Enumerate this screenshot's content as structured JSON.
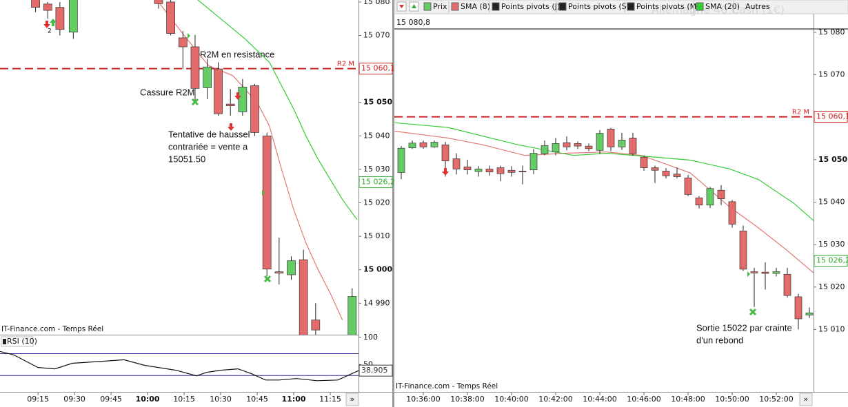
{
  "toolbar": {
    "items": [
      "Prix",
      "SMA (8)",
      "Points pivots (J)",
      "Points pivots (S)",
      "Points pivots (M)",
      "SMA (20)",
      "Autres"
    ]
  },
  "watermark": "Allemagne 40 Cash (1€)",
  "nav_button": "»",
  "annotations_left": [
    "R2M en resistance",
    "Cassure R2M",
    "Tentative de haussel",
    "contrariée = vente a",
    "15051.50",
    "2"
  ],
  "annotations_right": [
    "Sortie 15022 par crainte",
    "d'un rebond"
  ],
  "chart_data": [
    {
      "type": "candlestick",
      "source": "IT-Finance.com - Temps Réel",
      "up_color": "#66cc66",
      "down_color": "#e36b6b",
      "x": [
        554,
        559,
        564,
        569.5,
        604.5,
        609.5,
        614.5,
        619.5,
        624.5,
        629,
        634,
        639,
        644,
        649,
        654,
        659,
        664,
        669,
        684
      ],
      "open": [
        15082,
        15079.4,
        15078.4,
        15071,
        15081,
        15080,
        15069.3,
        15066.6,
        15054.4,
        15060,
        15049.5,
        15047.2,
        15055,
        15040,
        14999.4,
        14998.5,
        15003,
        14985,
        14980
      ],
      "high": [
        15083,
        15080,
        15080,
        15082,
        15082,
        15081,
        15071.3,
        15070.2,
        15063,
        15062,
        15054,
        15057,
        15055.5,
        15041,
        15009.6,
        15004,
        15006,
        14990,
        14994.5
      ],
      "low": [
        15077,
        15075,
        15070,
        15069,
        15078,
        15070,
        15060,
        15050,
        15051,
        15046,
        15046,
        15046,
        15040,
        14998,
        14995.6,
        14997,
        14975,
        14978,
        14979
      ],
      "close": [
        15078.4,
        15077.5,
        15071.8,
        15081,
        15079.5,
        15070.6,
        15066.6,
        15054.2,
        15060.6,
        15046.6,
        15049,
        15054.6,
        15041,
        15000.2,
        14999,
        15002.7,
        14978,
        14982,
        14992
      ],
      "series": [
        {
          "color": "#e07a74",
          "x": [
            605,
            615,
            625,
            635,
            645,
            650,
            655,
            660,
            665,
            670,
            675,
            680
          ],
          "values": [
            15079.5,
            15070,
            15061,
            15058,
            15050,
            15043,
            15030,
            15018,
            15008,
            15000,
            14993,
            14985
          ]
        },
        {
          "color": "#33cc33",
          "x": [
            620,
            630,
            640,
            650,
            655,
            660,
            665,
            670,
            675,
            680,
            686
          ],
          "values": [
            15081,
            15075,
            15069,
            15062,
            15055,
            15048,
            15040,
            15033,
            15027,
            15021,
            15015
          ]
        }
      ],
      "xlim": [
        539.4,
        686.6
      ],
      "xticks": [
        {
          "value": 555,
          "label": "09:15"
        },
        {
          "value": 570,
          "label": "09:30"
        },
        {
          "value": 585,
          "label": "09:45"
        },
        {
          "value": 600,
          "label": "10:00"
        },
        {
          "value": 615,
          "label": "10:15"
        },
        {
          "value": 630,
          "label": "10:30"
        },
        {
          "value": 645,
          "label": "10:45"
        },
        {
          "value": 660,
          "label": "11:00"
        },
        {
          "value": 675,
          "label": "11:15"
        }
      ],
      "ylim": [
        14980.6,
        15080.6
      ],
      "yticks": [
        {
          "value": 15080,
          "label": "15 080"
        },
        {
          "value": 15070,
          "label": "15 070"
        },
        {
          "value": 15050,
          "label": "15 050"
        },
        {
          "value": 15040,
          "label": "15 040"
        },
        {
          "value": 15030,
          "label": "15 030"
        },
        {
          "value": 15020,
          "label": "15 020"
        },
        {
          "value": 15010,
          "label": "15 010"
        },
        {
          "value": 15000,
          "label": "15 000"
        },
        {
          "value": 14990,
          "label": "14 990"
        }
      ],
      "levels": [
        {
          "value": 15060.1,
          "label": "R2 M",
          "color": "#cc2222"
        }
      ],
      "price_labels": [
        {
          "value": 15060.1,
          "label": "15 060,1",
          "color": "#cc2222"
        },
        {
          "value": 15026.2,
          "label": "15 026,2",
          "color": "#33aa33"
        }
      ]
    },
    {
      "type": "line",
      "title": "RSI (10)",
      "color": "#111111",
      "x": [
        539.4,
        545.1,
        555,
        562,
        569.1,
        581.9,
        590.3,
        598.8,
        611.6,
        620.1,
        624.3,
        630,
        637.1,
        642.7,
        648.4,
        654,
        661.1,
        669.6,
        678.1,
        683.8,
        686.6
      ],
      "values": [
        74.1,
        67.7,
        44.7,
        42.2,
        52.4,
        56.2,
        58.8,
        48.6,
        39.6,
        29.4,
        35.8,
        39.6,
        42.2,
        33.2,
        21.7,
        21.7,
        24.3,
        20.4,
        21.7,
        33.2,
        38.9
      ],
      "xlim": [
        539.4,
        686.6
      ],
      "ylim": [
        0,
        103.5
      ],
      "yticks": [
        100,
        50
      ],
      "levels": [
        {
          "value": 70,
          "color": "#333399"
        },
        {
          "value": 30,
          "color": "#333399"
        }
      ],
      "price_labels": [
        {
          "value": 38.905,
          "label": "38,905",
          "color": "#333333"
        }
      ]
    },
    {
      "type": "candlestick",
      "source": "IT-Finance.com - Temps Réel",
      "up_color": "#66cc66",
      "down_color": "#e36b6b",
      "x": [
        635,
        635.5,
        636,
        636.5,
        637,
        637.5,
        638,
        638.5,
        639,
        639.5,
        640,
        640.5,
        641,
        641.5,
        642,
        642.5,
        643,
        643.5,
        644,
        644.5,
        645,
        645.5,
        646,
        646.5,
        647,
        647.5,
        648,
        648.5,
        649,
        649.5,
        650,
        650.5,
        651,
        651.5,
        652,
        652.5,
        653,
        653.5
      ],
      "open": [
        15047,
        15052.8,
        15054,
        15053,
        15053.5,
        15050.2,
        15048.3,
        15047.2,
        15047.8,
        15048.1,
        15047.5,
        15047.3,
        15047.6,
        15051.4,
        15051.8,
        15054,
        15053.8,
        15053.2,
        15052.2,
        15057.2,
        15053,
        15055.1,
        15050.6,
        15048.1,
        15047.3,
        15046.6,
        15045.7,
        15041,
        15039.3,
        15042.8,
        15040.1,
        15033.2,
        15023.6,
        15023.5,
        15023.2,
        15023,
        15017.7,
        15013.4
      ],
      "high": [
        15053.2,
        15054.5,
        15054.5,
        15054.5,
        15054.2,
        15051.5,
        15050,
        15048.5,
        15048.6,
        15048.6,
        15048.5,
        15048.6,
        15052.5,
        15054.5,
        15055.1,
        15055.5,
        15054.3,
        15053.8,
        15057,
        15057.5,
        15056.3,
        15056.3,
        15051,
        15048.6,
        15048,
        15048.2,
        15046.4,
        15041.4,
        15043.6,
        15044,
        15040.5,
        15034.5,
        15024.5,
        15025.8,
        15024.5,
        15024.5,
        15018.4,
        15015.2
      ],
      "low": [
        15045.4,
        15052.5,
        15052.6,
        15052.8,
        15046,
        15046.5,
        15046.5,
        15046,
        15046.2,
        15044.9,
        15046,
        15044.2,
        15046.6,
        15051,
        15051,
        15052.2,
        15052.5,
        15052,
        15051.3,
        15052,
        15052.3,
        15050.9,
        15047.4,
        15044.5,
        15045.6,
        15045.6,
        15041.4,
        15038.5,
        15038.6,
        15039.3,
        15034,
        15023.8,
        15015.3,
        15019.4,
        15022.5,
        15017.5,
        15010,
        15012.7
      ],
      "close": [
        15052.7,
        15053.9,
        15053,
        15054.1,
        15049.7,
        15047.8,
        15047.6,
        15047.8,
        15047.1,
        15046.7,
        15047,
        15047.1,
        15051.5,
        15053.3,
        15053.8,
        15053,
        15053.2,
        15052.6,
        15056.2,
        15053,
        15054.6,
        15051.4,
        15048.1,
        15047.5,
        15046.2,
        15046,
        15041.8,
        15039.3,
        15043.2,
        15040.8,
        15034.8,
        15024.2,
        15023.3,
        15023.2,
        15023.6,
        15018,
        15012.5,
        15013.9
      ],
      "series": [
        {
          "color": "#e07a74",
          "x": [
            634.7,
            637.1,
            638.7,
            640.6,
            642.4,
            644.3,
            645.9,
            648.1,
            649.9,
            651.2,
            652.4,
            653.7
          ],
          "values": [
            15056.7,
            15055.1,
            15053.5,
            15051,
            15051.5,
            15051.8,
            15051,
            15046.9,
            15038.8,
            15033.9,
            15029,
            15023.3
          ]
        },
        {
          "color": "#33cc33",
          "x": [
            634.7,
            637.1,
            640.3,
            642.8,
            644.3,
            646.5,
            648.1,
            649.9,
            651.2,
            652.8,
            653.7
          ],
          "values": [
            15058.7,
            15057.6,
            15053.5,
            15051,
            15051.5,
            15050.6,
            15049.9,
            15047.8,
            15045.3,
            15039.7,
            15035.6
          ]
        }
      ],
      "xlim": [
        634.6875,
        653.6875
      ],
      "xticks": [
        {
          "value": 636,
          "label": "10:36:00"
        },
        {
          "value": 638,
          "label": "10:38:00"
        },
        {
          "value": 640,
          "label": "10:40:00"
        },
        {
          "value": 642,
          "label": "10:42:00"
        },
        {
          "value": 644,
          "label": "10:44:00"
        },
        {
          "value": 646,
          "label": "10:46:00"
        },
        {
          "value": 648,
          "label": "10:48:00"
        },
        {
          "value": 650,
          "label": "10:50:00"
        },
        {
          "value": 652,
          "label": "10:52:00"
        }
      ],
      "ylim": [
        14995.3,
        15080.8
      ],
      "yticks": [
        {
          "value": 15080,
          "label": "15 080"
        },
        {
          "value": 15070,
          "label": "15 070"
        },
        {
          "value": 15050,
          "label": "15 050"
        },
        {
          "value": 15040,
          "label": "15 040"
        },
        {
          "value": 15030,
          "label": "15 030"
        },
        {
          "value": 15020,
          "label": "15 020"
        },
        {
          "value": 15010,
          "label": "15 010"
        }
      ],
      "levels": [
        {
          "value": 15060.1,
          "label": "R2 M",
          "color": "#cc2222"
        }
      ],
      "top_label": {
        "value": 15080.8,
        "label": "15 080,8"
      },
      "price_labels": [
        {
          "value": 15060.1,
          "label": "15 060,1",
          "color": "#cc2222"
        },
        {
          "value": 15026.2,
          "label": "15 026,2",
          "color": "#33aa33"
        }
      ]
    }
  ]
}
